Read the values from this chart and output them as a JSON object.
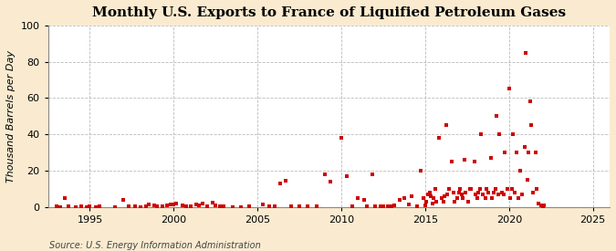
{
  "title": "Monthly U.S. Exports to France of Liquified Petroleum Gases",
  "ylabel": "Thousand Barrels per Day",
  "source": "Source: U.S. Energy Information Administration",
  "xlim": [
    1992.5,
    2026
  ],
  "ylim": [
    0,
    100
  ],
  "yticks": [
    0,
    20,
    40,
    60,
    80,
    100
  ],
  "xticks": [
    1995,
    2000,
    2005,
    2010,
    2015,
    2020,
    2025
  ],
  "outer_bg": "#faebd0",
  "plot_bg": "#ffffff",
  "marker_color": "#cc0000",
  "grid_color": "#aaaaaa",
  "title_fontsize": 11,
  "ylabel_fontsize": 8,
  "tick_fontsize": 8,
  "source_fontsize": 7,
  "data": [
    [
      1993.0,
      0.5
    ],
    [
      1993.25,
      0.2
    ],
    [
      1993.5,
      5.0
    ],
    [
      1993.75,
      0.3
    ],
    [
      1994.17,
      0.2
    ],
    [
      1994.5,
      0.5
    ],
    [
      1994.83,
      0.2
    ],
    [
      1995.0,
      0.3
    ],
    [
      1995.33,
      0.2
    ],
    [
      1995.58,
      0.5
    ],
    [
      1996.5,
      0.2
    ],
    [
      1997.0,
      4.0
    ],
    [
      1997.33,
      0.5
    ],
    [
      1997.67,
      0.3
    ],
    [
      1998.0,
      0.2
    ],
    [
      1998.33,
      0.5
    ],
    [
      1998.5,
      1.5
    ],
    [
      1998.83,
      1.0
    ],
    [
      1999.0,
      0.3
    ],
    [
      1999.33,
      0.5
    ],
    [
      1999.58,
      1.0
    ],
    [
      1999.83,
      1.5
    ],
    [
      2000.0,
      1.5
    ],
    [
      2000.17,
      2.0
    ],
    [
      2000.5,
      1.0
    ],
    [
      2000.75,
      0.5
    ],
    [
      2001.0,
      0.5
    ],
    [
      2001.33,
      1.5
    ],
    [
      2001.5,
      1.0
    ],
    [
      2001.75,
      2.0
    ],
    [
      2002.0,
      0.5
    ],
    [
      2002.33,
      2.5
    ],
    [
      2002.5,
      1.0
    ],
    [
      2002.75,
      0.5
    ],
    [
      2003.0,
      0.3
    ],
    [
      2003.5,
      0.2
    ],
    [
      2004.0,
      0.2
    ],
    [
      2004.5,
      0.3
    ],
    [
      2005.33,
      1.5
    ],
    [
      2005.67,
      0.5
    ],
    [
      2006.0,
      0.3
    ],
    [
      2006.33,
      13.0
    ],
    [
      2006.67,
      14.5
    ],
    [
      2007.0,
      0.5
    ],
    [
      2007.5,
      0.3
    ],
    [
      2008.0,
      0.3
    ],
    [
      2008.5,
      0.5
    ],
    [
      2009.0,
      18.0
    ],
    [
      2009.33,
      14.0
    ],
    [
      2010.0,
      38.0
    ],
    [
      2010.33,
      17.0
    ],
    [
      2010.67,
      0.5
    ],
    [
      2011.0,
      5.0
    ],
    [
      2011.33,
      4.0
    ],
    [
      2011.5,
      0.5
    ],
    [
      2011.83,
      18.0
    ],
    [
      2012.0,
      0.5
    ],
    [
      2012.33,
      0.3
    ],
    [
      2012.5,
      0.3
    ],
    [
      2012.75,
      0.5
    ],
    [
      2013.0,
      0.5
    ],
    [
      2013.17,
      1.0
    ],
    [
      2013.5,
      4.0
    ],
    [
      2013.75,
      5.0
    ],
    [
      2014.0,
      1.5
    ],
    [
      2014.17,
      6.0
    ],
    [
      2014.5,
      0.5
    ],
    [
      2014.75,
      20.0
    ],
    [
      2014.92,
      5.0
    ],
    [
      2015.0,
      1.0
    ],
    [
      2015.08,
      3.0
    ],
    [
      2015.17,
      7.0
    ],
    [
      2015.25,
      8.0
    ],
    [
      2015.33,
      6.0
    ],
    [
      2015.42,
      2.0
    ],
    [
      2015.5,
      5.0
    ],
    [
      2015.58,
      10.0
    ],
    [
      2015.67,
      3.0
    ],
    [
      2015.83,
      38.0
    ],
    [
      2016.0,
      5.0
    ],
    [
      2016.08,
      3.0
    ],
    [
      2016.17,
      6.0
    ],
    [
      2016.25,
      45.0
    ],
    [
      2016.33,
      7.0
    ],
    [
      2016.42,
      10.0
    ],
    [
      2016.58,
      25.0
    ],
    [
      2016.67,
      8.0
    ],
    [
      2016.75,
      3.0
    ],
    [
      2016.92,
      5.0
    ],
    [
      2017.0,
      8.0
    ],
    [
      2017.08,
      10.0
    ],
    [
      2017.17,
      7.0
    ],
    [
      2017.25,
      5.0
    ],
    [
      2017.33,
      26.0
    ],
    [
      2017.42,
      8.0
    ],
    [
      2017.58,
      3.0
    ],
    [
      2017.67,
      10.0
    ],
    [
      2017.75,
      10.0
    ],
    [
      2017.92,
      25.0
    ],
    [
      2018.0,
      7.0
    ],
    [
      2018.08,
      5.0
    ],
    [
      2018.17,
      8.0
    ],
    [
      2018.25,
      10.0
    ],
    [
      2018.33,
      40.0
    ],
    [
      2018.42,
      7.0
    ],
    [
      2018.58,
      5.0
    ],
    [
      2018.67,
      10.0
    ],
    [
      2018.75,
      8.0
    ],
    [
      2018.92,
      27.0
    ],
    [
      2019.0,
      5.0
    ],
    [
      2019.08,
      8.0
    ],
    [
      2019.17,
      10.0
    ],
    [
      2019.25,
      50.0
    ],
    [
      2019.33,
      7.0
    ],
    [
      2019.42,
      40.0
    ],
    [
      2019.58,
      8.0
    ],
    [
      2019.67,
      7.0
    ],
    [
      2019.75,
      30.0
    ],
    [
      2019.92,
      10.0
    ],
    [
      2020.0,
      65.0
    ],
    [
      2020.08,
      5.0
    ],
    [
      2020.17,
      10.0
    ],
    [
      2020.25,
      40.0
    ],
    [
      2020.33,
      8.0
    ],
    [
      2020.42,
      30.0
    ],
    [
      2020.58,
      5.0
    ],
    [
      2020.67,
      20.0
    ],
    [
      2020.75,
      7.0
    ],
    [
      2020.92,
      33.0
    ],
    [
      2021.0,
      85.0
    ],
    [
      2021.08,
      15.0
    ],
    [
      2021.17,
      30.0
    ],
    [
      2021.25,
      58.0
    ],
    [
      2021.33,
      45.0
    ],
    [
      2021.42,
      8.0
    ],
    [
      2021.58,
      30.0
    ],
    [
      2021.67,
      10.0
    ],
    [
      2021.75,
      2.0
    ],
    [
      2021.92,
      1.0
    ],
    [
      2022.0,
      0.5
    ],
    [
      2022.08,
      1.0
    ]
  ]
}
